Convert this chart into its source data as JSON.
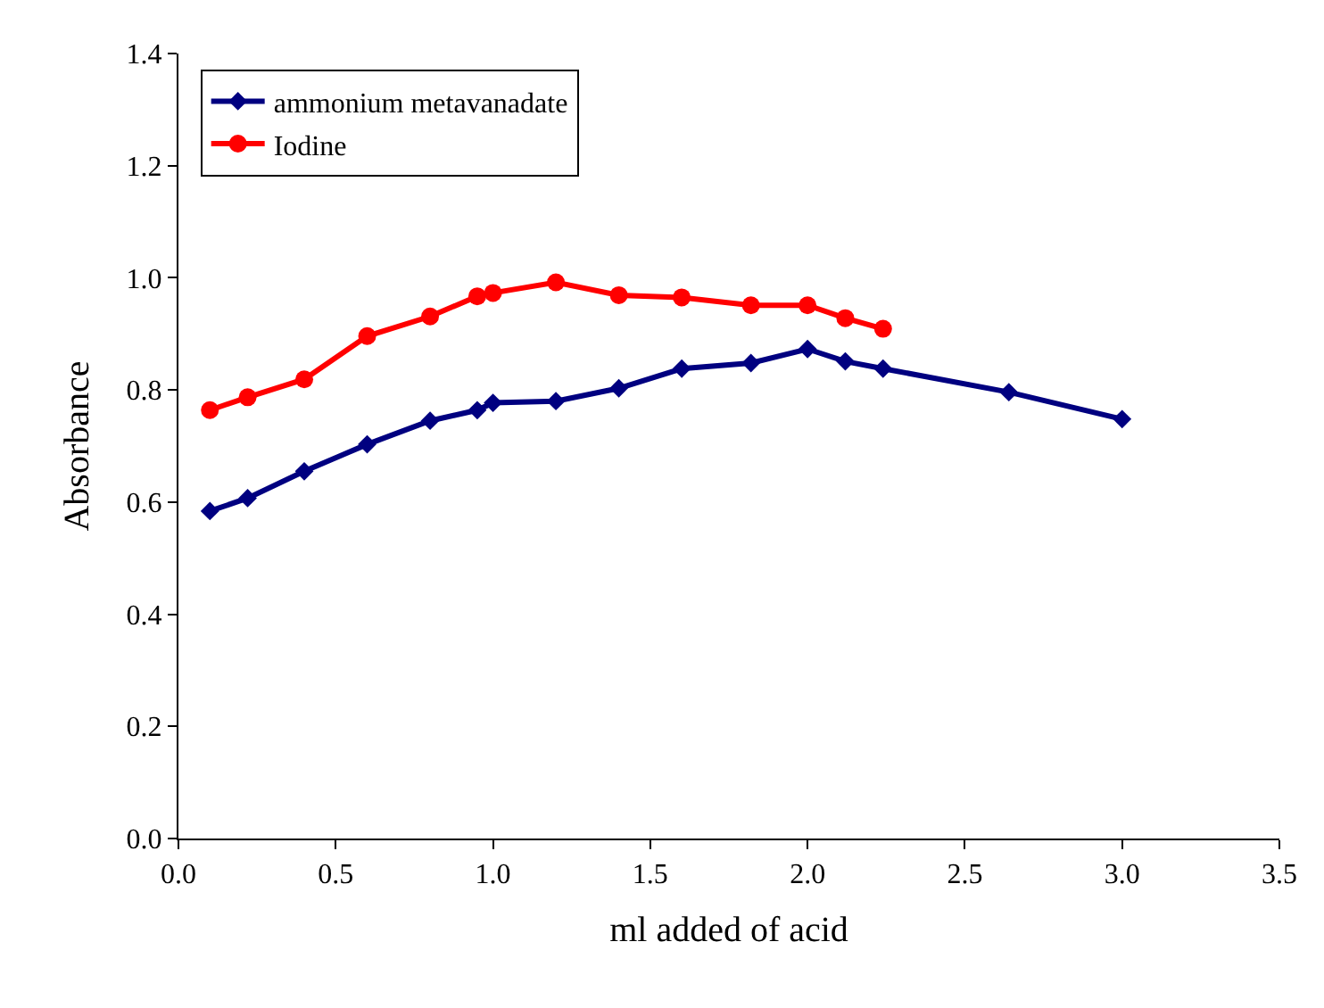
{
  "chart_data": {
    "type": "line",
    "xlabel": "ml added of acid",
    "ylabel": "Absorbance",
    "xlim": [
      0,
      3.5
    ],
    "xticks": [
      {
        "value": 0,
        "label": "0.0"
      },
      {
        "value": 0.5,
        "label": "0.5"
      },
      {
        "value": 1,
        "label": "1.0"
      },
      {
        "value": 1.5,
        "label": "1.5"
      },
      {
        "value": 2,
        "label": "2.0"
      },
      {
        "value": 2.5,
        "label": "2.5"
      },
      {
        "value": 3,
        "label": "3.0"
      },
      {
        "value": 3.5,
        "label": "3.5"
      }
    ],
    "ylim": [
      0,
      1.4
    ],
    "yticks": [
      {
        "value": 0,
        "label": "0.0"
      },
      {
        "value": 0.2,
        "label": "0.2"
      },
      {
        "value": 0.4,
        "label": "0.4"
      },
      {
        "value": 0.6,
        "label": "0.6"
      },
      {
        "value": 0.8,
        "label": "0.8"
      },
      {
        "value": 1,
        "label": "1.0"
      },
      {
        "value": 1.2,
        "label": "1.2"
      },
      {
        "value": 1.4,
        "label": "1.4"
      }
    ],
    "legend": "top left",
    "line_style": "solid",
    "series": [
      {
        "name": "ammonium metavanadate",
        "color": "#000080",
        "marker": "diamond",
        "x": [
          0.1,
          0.22,
          0.4,
          0.6,
          0.8,
          0.95,
          1.0,
          1.2,
          1.4,
          1.6,
          1.82,
          2.0,
          2.12,
          2.24,
          2.64,
          3.0
        ],
        "values": [
          0.584,
          0.607,
          0.655,
          0.703,
          0.745,
          0.764,
          0.777,
          0.78,
          0.803,
          0.838,
          0.848,
          0.873,
          0.851,
          0.838,
          0.796,
          0.748
        ]
      },
      {
        "name": "Iodine",
        "color": "#ff0000",
        "marker": "circle",
        "x": [
          0.1,
          0.22,
          0.4,
          0.6,
          0.8,
          0.95,
          1.0,
          1.2,
          1.4,
          1.6,
          1.82,
          2.0,
          2.12,
          2.24
        ],
        "values": [
          0.764,
          0.787,
          0.819,
          0.896,
          0.931,
          0.967,
          0.973,
          0.992,
          0.969,
          0.965,
          0.951,
          0.951,
          0.928,
          0.909
        ]
      }
    ]
  }
}
